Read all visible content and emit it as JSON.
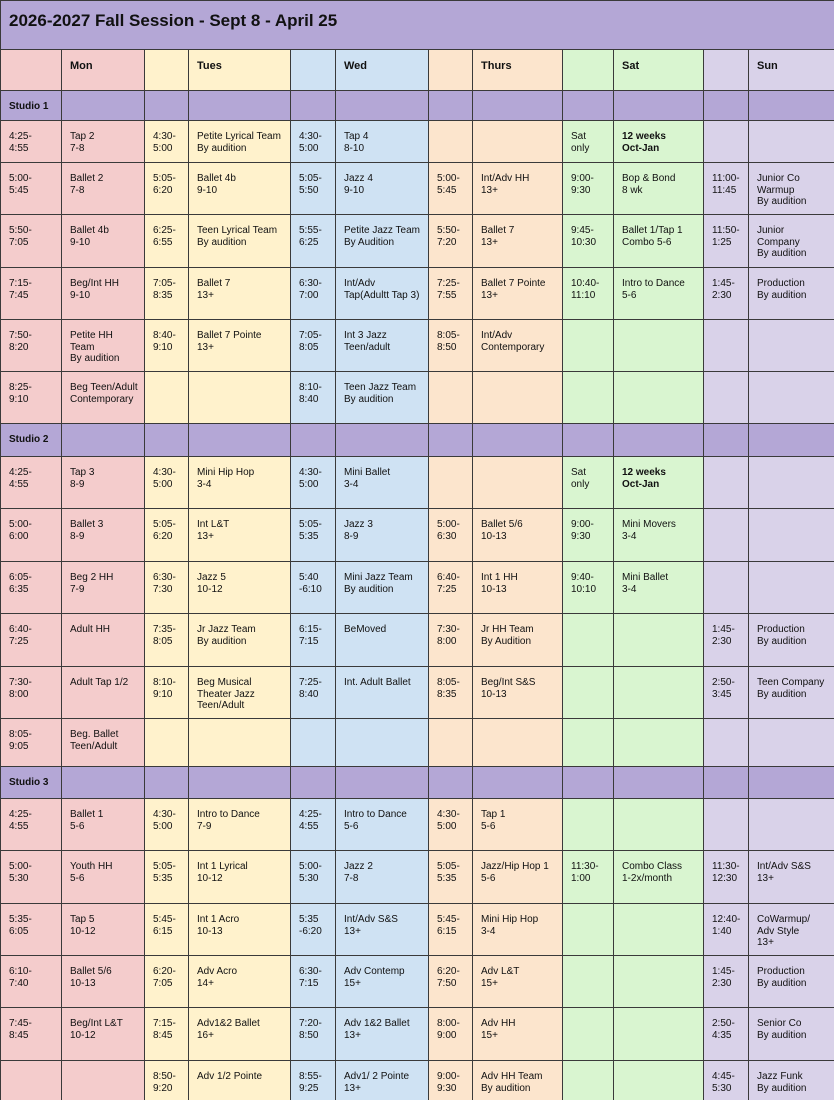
{
  "title": "2026-2027 Fall Session - Sept 8 - April 25",
  "days": [
    "Mon",
    "Tues",
    "Wed",
    "Thurs",
    "Sat",
    "Sun"
  ],
  "studios": [
    {
      "name": "Studio 1",
      "rows": [
        [
          "4:25-\n4:55",
          "Tap 2\n7-8",
          "4:30-\n5:00",
          "Petite Lyrical Team\nBy audition",
          "4:30-\n5:00",
          "Tap 4\n8-10",
          null,
          null,
          "Sat\nonly",
          {
            "text": "12  weeks\nOct-Jan",
            "bold": true
          },
          null,
          null
        ],
        [
          "5:00-\n5:45",
          "Ballet 2\n7-8",
          "5:05-\n6:20",
          "Ballet 4b\n9-10",
          "5:05-\n5:50",
          "Jazz 4\n9-10",
          "5:00-\n5:45",
          "Int/Adv HH\n13+",
          "9:00-\n9:30",
          "Bop & Bond\n8 wk",
          "11:00-\n11:45",
          "Junior Co\nWarmup\nBy audition"
        ],
        [
          "5:50-\n7:05",
          "Ballet 4b\n9-10",
          "6:25-\n6:55",
          "Teen Lyrical Team\nBy audition",
          "5:55-\n6:25",
          "Petite Jazz Team\nBy Audition",
          "5:50-\n7:20",
          "Ballet 7\n13+",
          "9:45-\n10:30",
          "Ballet 1/Tap 1\nCombo 5-6",
          "11:50-\n1:25",
          "Junior\nCompany\nBy audition"
        ],
        [
          "7:15-\n7:45",
          "Beg/Int HH\n9-10",
          "7:05-\n8:35",
          "Ballet 7\n13+",
          "6:30-\n7:00",
          "Int/Adv\nTap(Adultt Tap 3)",
          "7:25-\n7:55",
          "Ballet 7 Pointe\n13+",
          "10:40-\n11:10",
          "Intro to Dance\n5-6",
          "1:45-\n2:30",
          "Production\nBy audition"
        ],
        [
          "7:50-\n8:20",
          "Petite HH\nTeam\nBy audition",
          "8:40-\n9:10",
          "Ballet 7 Pointe\n13+",
          "7:05-\n8:05",
          "Int 3 Jazz\n Teen/adult",
          "8:05-\n8:50",
          "Int/Adv\nContemporary",
          null,
          null,
          null,
          null
        ],
        [
          "8:25-\n9:10",
          "Beg Teen/Adult\nContemporary",
          null,
          null,
          "8:10-\n8:40",
          "Teen Jazz Team\nBy audition",
          null,
          null,
          null,
          null,
          null,
          null
        ]
      ]
    },
    {
      "name": "Studio 2",
      "rows": [
        [
          "4:25-\n4:55",
          "Tap 3\n8-9",
          "4:30-\n5:00",
          "Mini Hip Hop\n3-4",
          "4:30-\n5:00",
          " Mini Ballet\n3-4",
          null,
          null,
          "Sat\nonly",
          {
            "text": "12 weeks\nOct-Jan",
            "bold": true
          },
          null,
          null
        ],
        [
          "5:00-\n6:00",
          "Ballet 3\n8-9",
          "5:05-\n6:20",
          "Int L&T\n13+",
          "5:05-\n5:35",
          "Jazz 3\n8-9",
          "5:00-\n6:30",
          "Ballet 5/6\n10-13",
          "9:00-\n9:30",
          "Mini Movers\n3-4",
          null,
          null
        ],
        [
          "6:05-\n6:35",
          "Beg 2 HH\n7-9",
          "6:30-\n7:30",
          "Jazz 5\n10-12",
          "5:40\n-6:10",
          "Mini Jazz Team\nBy audition",
          "6:40-\n7:25",
          "Int 1 HH\n10-13",
          "9:40-\n10:10",
          "Mini Ballet\n3-4",
          null,
          null
        ],
        [
          "6:40-\n7:25",
          "Adult HH",
          "7:35-\n8:05",
          "Jr Jazz Team\nBy audition",
          "6:15-\n7:15",
          "BeMoved",
          "7:30-\n8:00",
          "Jr HH Team\nBy Audition",
          null,
          null,
          "1:45-\n2:30",
          "Production\nBy audition"
        ],
        [
          "7:30-\n8:00",
          "Adult Tap 1/2",
          "8:10-\n9:10",
          "Beg Musical\nTheater Jazz\nTeen/Adult",
          "7:25-\n8:40",
          "Int. Adult Ballet",
          "8:05-\n8:35",
          "Beg/Int S&S\n10-13",
          null,
          null,
          "2:50-\n3:45",
          "Teen Company\nBy audition"
        ],
        [
          "8:05-\n9:05",
          "Beg. Ballet\nTeen/Adult",
          null,
          null,
          null,
          null,
          null,
          null,
          null,
          null,
          null,
          null
        ]
      ]
    },
    {
      "name": "Studio 3",
      "rows": [
        [
          "4:25-\n4:55",
          "Ballet 1\n5-6",
          "4:30-\n5:00",
          "Intro to Dance\n7-9",
          "4:25-\n4:55",
          "Intro to Dance\n5-6",
          "4:30-\n5:00",
          "Tap 1\n5-6",
          null,
          null,
          null,
          null
        ],
        [
          "5:00-\n5:30",
          "Youth HH\n5-6",
          "5:05-\n5:35",
          "Int 1 Lyrical\n10-12",
          "5:00-\n5:30",
          "Jazz 2\n7-8",
          "5:05-\n5:35",
          "Jazz/Hip Hop 1\n5-6",
          "11:30-\n1:00",
          "Combo Class\n1-2x/month",
          "11:30-\n12:30",
          "Int/Adv S&S\n13+"
        ],
        [
          "5:35-\n6:05",
          "Tap 5\n10-12",
          "5:45-\n6:15",
          "Int 1 Acro\n10-13",
          "5:35\n-6:20",
          "Int/Adv S&S\n13+",
          "5:45-\n6:15",
          "Mini Hip Hop\n3-4",
          null,
          null,
          "12:40-\n1:40",
          "CoWarmup/\nAdv Style\n13+"
        ],
        [
          "6:10-\n7:40",
          "Ballet 5/6\n10-13",
          "6:20-\n7:05",
          "Adv Acro\n14+",
          "6:30-\n7:15",
          "Adv Contemp\n15+",
          "6:20-\n7:50",
          "Adv L&T\n15+",
          null,
          null,
          "1:45-\n2:30",
          "Production\nBy audition"
        ],
        [
          "7:45-\n8:45",
          "Beg/Int L&T\n10-12",
          "7:15-\n8:45",
          "Adv1&2 Ballet\n16+",
          "7:20-\n8:50",
          "Adv 1&2 Ballet\n13+",
          "8:00-\n9:00",
          "Adv HH\n15+",
          null,
          null,
          "2:50-\n4:35",
          "Senior Co\nBy audition"
        ],
        [
          null,
          null,
          "8:50-\n9:20",
          "Adv 1/2 Pointe",
          "8:55-\n9:25",
          "Adv1/ 2 Pointe\n13+",
          "9:00-\n9:30",
          "Adv HH Team\nBy audition",
          null,
          null,
          "4:45-\n5:30",
          "Jazz Funk\nBy audition"
        ]
      ]
    }
  ]
}
